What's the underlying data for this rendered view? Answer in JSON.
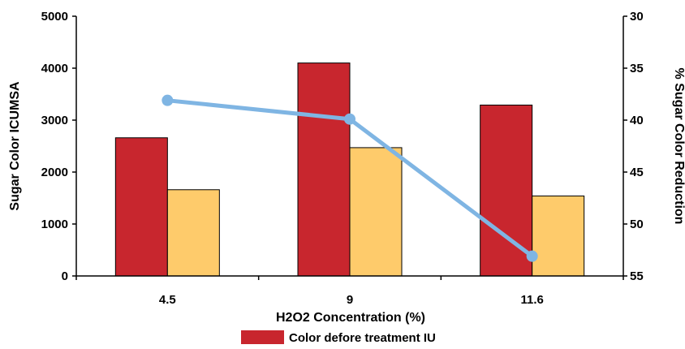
{
  "chart_data": {
    "type": "bar",
    "categories": [
      "4.5",
      "9",
      "11.6"
    ],
    "xlabel": "H2O2 Concentration (%)",
    "ylabel": "Sugar Color ICUMSA",
    "y2label": "% Sugar Color Reduction",
    "ylim": [
      0,
      5000
    ],
    "yticks": [
      "0",
      "1000",
      "2000",
      "3000",
      "4000",
      "5000"
    ],
    "y2lim": [
      30,
      55
    ],
    "y2_reversed": true,
    "y2ticks": [
      "30",
      "35",
      "40",
      "45",
      "50",
      "55"
    ],
    "series": [
      {
        "name": "Color defore treatment IU",
        "type": "bar",
        "axis": "left",
        "color": "#c8262e",
        "values": [
          2660,
          4100,
          3290
        ]
      },
      {
        "type": "bar",
        "axis": "left",
        "color": "#fecb6b",
        "values": [
          1660,
          2470,
          1540
        ]
      },
      {
        "type": "line",
        "axis": "right",
        "color": "#7fb5e3",
        "values": [
          38.1,
          39.9,
          53.1
        ]
      }
    ],
    "legend": {
      "position": "bottom",
      "entries": [
        "Color defore treatment IU"
      ]
    },
    "grid": false
  }
}
